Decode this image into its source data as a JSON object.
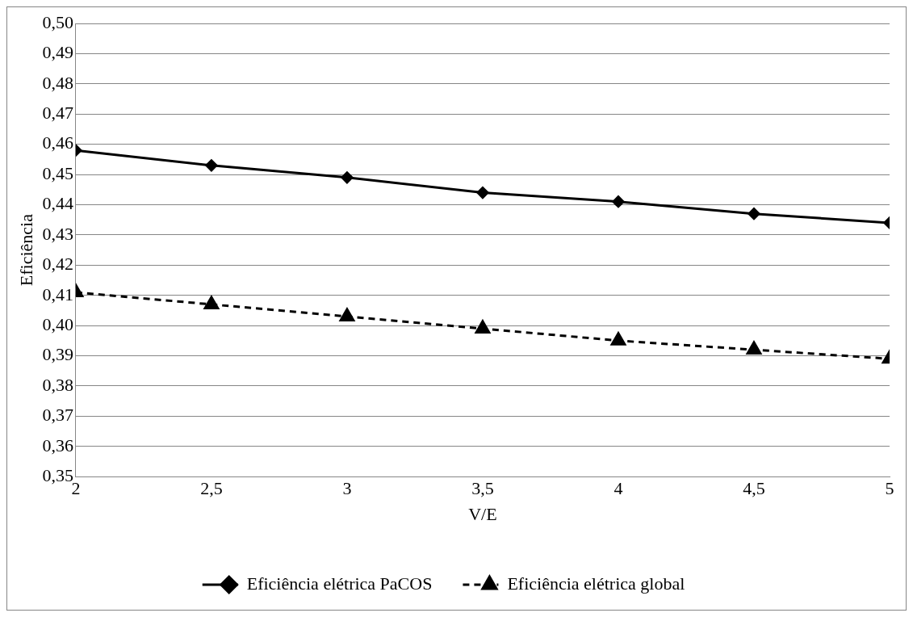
{
  "chart_data": {
    "type": "line",
    "xlabel": "V/E",
    "ylabel": "Eficiência",
    "x": [
      2,
      2.5,
      3,
      3.5,
      4,
      4.5,
      5
    ],
    "series": [
      {
        "name": "Eficiência elétrica PaCOS",
        "color": "#000000",
        "marker": "diamond",
        "line_style": "solid",
        "values": [
          0.458,
          0.453,
          0.449,
          0.444,
          0.441,
          0.437,
          0.434
        ]
      },
      {
        "name": "Eficiência elétrica global",
        "color": "#000000",
        "marker": "triangle",
        "line_style": "dashed",
        "values": [
          0.411,
          0.407,
          0.403,
          0.399,
          0.395,
          0.392,
          0.389
        ]
      }
    ],
    "xlim": [
      2,
      5
    ],
    "xticks": [
      2,
      {
        "value": 2.5,
        "label": "2,5"
      },
      3,
      {
        "value": 3.5,
        "label": "3,5"
      },
      4,
      {
        "value": 4.5,
        "label": "4,5"
      },
      5
    ],
    "ylim": [
      0.35,
      0.5
    ],
    "yticks": [
      {
        "value": 0.35,
        "label": "0,35"
      },
      {
        "value": 0.36,
        "label": "0,36"
      },
      {
        "value": 0.37,
        "label": "0,37"
      },
      {
        "value": 0.38,
        "label": "0,38"
      },
      {
        "value": 0.39,
        "label": "0,39"
      },
      {
        "value": 0.4,
        "label": "0,40"
      },
      {
        "value": 0.41,
        "label": "0,41"
      },
      {
        "value": 0.42,
        "label": "0,42"
      },
      {
        "value": 0.43,
        "label": "0,43"
      },
      {
        "value": 0.44,
        "label": "0,44"
      },
      {
        "value": 0.45,
        "label": "0,45"
      },
      {
        "value": 0.46,
        "label": "0,46"
      },
      {
        "value": 0.47,
        "label": "0,47"
      },
      {
        "value": 0.48,
        "label": "0,48"
      },
      {
        "value": 0.49,
        "label": "0,49"
      },
      {
        "value": 0.5,
        "label": "0,50"
      }
    ],
    "grid": "y",
    "legend": "bottom"
  }
}
